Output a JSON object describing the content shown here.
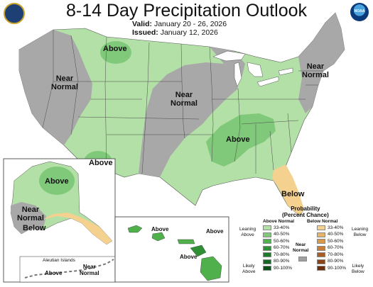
{
  "title": "8-14 Day Precipitation Outlook",
  "valid_label": "Valid:",
  "valid_value": "January 20 - 26, 2026",
  "issued_label": "Issued:",
  "issued_value": "January 12, 2026",
  "logos": {
    "left": "doc-seal-icon",
    "right": "noaa-logo-icon",
    "noaa_text": "NOAA"
  },
  "regions": {
    "mt_above": "Above",
    "west_near": "Near\nNormal",
    "central_near": "Near\nNormal",
    "ne_near": "Near\nNormal",
    "se_above": "Above",
    "az_above": "Above",
    "fl_below": "Below",
    "ak_above": "Above",
    "ak_near": "Near\nNormal",
    "ak_below": "Below",
    "aleutian_title": "Aleutian Islands",
    "aleutian_above": "Above",
    "aleutian_near": "Near\nNormal",
    "hi_above1": "Above",
    "hi_above2": "Above",
    "hi_above3": "Above"
  },
  "legend": {
    "title": "Probability\n(Percent Chance)",
    "above_header": "Above Normal",
    "below_header": "Below Normal",
    "near_label": "Near\nNormal",
    "leaning_above": "Leaning\nAbove",
    "likely_above": "Likely\nAbove",
    "leaning_below": "Leaning\nBelow",
    "likely_below": "Likely\nBelow",
    "above_levels": [
      "33-40%",
      "40-50%",
      "50-60%",
      "60-70%",
      "70-80%",
      "80-90%",
      "90-100%"
    ],
    "below_levels": [
      "33-40%",
      "40-50%",
      "50-60%",
      "60-70%",
      "70-80%",
      "80-90%",
      "90-100%"
    ],
    "above_colors": [
      "#b3e0a6",
      "#80c97a",
      "#4fb04c",
      "#2f8f35",
      "#1f7a2c",
      "#156823",
      "#0b4f18"
    ],
    "below_colors": [
      "#f5d18f",
      "#e6b36a",
      "#d89848",
      "#c97c33",
      "#a95d24",
      "#8a4418",
      "#6b2f0c"
    ],
    "near_color": "#a0a0a0"
  },
  "colors": {
    "above_33_40": "#b3e0a6",
    "above_40_50": "#80c97a",
    "near_normal": "#a8a8a8",
    "below_33_40": "#f5d18f",
    "borders": "#ffffff",
    "lakes": "#ffffff"
  }
}
